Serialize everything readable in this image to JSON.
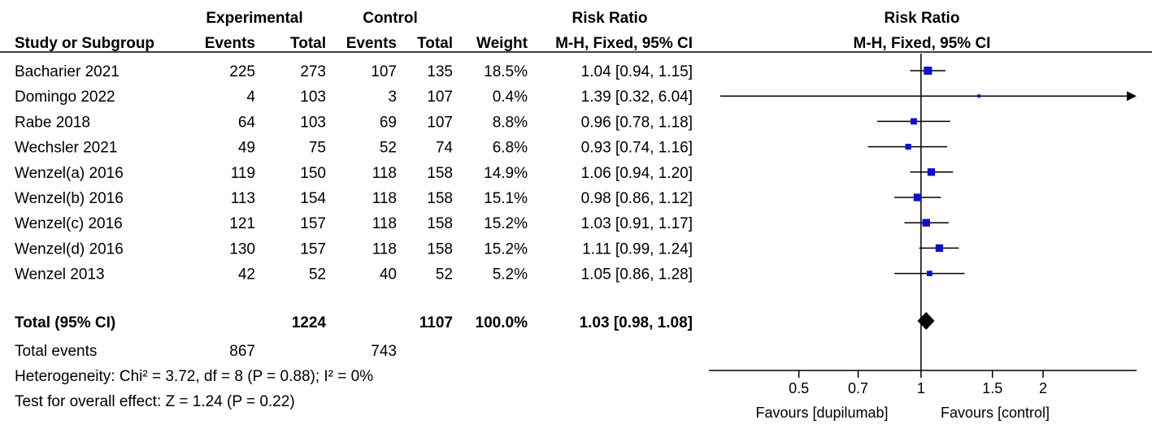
{
  "header": {
    "group_experimental": "Experimental",
    "group_control": "Control",
    "risk_ratio": "Risk Ratio",
    "col_study": "Study or Subgroup",
    "col_events": "Events",
    "col_total": "Total",
    "col_weight": "Weight",
    "col_method": "M-H, Fixed, 95% CI",
    "plot_title": "Risk Ratio",
    "plot_method": "M-H, Fixed, 95% CI"
  },
  "rows": [
    {
      "study": "Bacharier 2021",
      "exp_events": "225",
      "exp_total": "273",
      "ctl_events": "107",
      "ctl_total": "135",
      "weight": "18.5%",
      "ci": "1.04 [0.94, 1.15]"
    },
    {
      "study": "Domingo 2022",
      "exp_events": "4",
      "exp_total": "103",
      "ctl_events": "3",
      "ctl_total": "107",
      "weight": "0.4%",
      "ci": "1.39 [0.32, 6.04]"
    },
    {
      "study": "Rabe 2018",
      "exp_events": "64",
      "exp_total": "103",
      "ctl_events": "69",
      "ctl_total": "107",
      "weight": "8.8%",
      "ci": "0.96 [0.78, 1.18]"
    },
    {
      "study": "Wechsler 2021",
      "exp_events": "49",
      "exp_total": "75",
      "ctl_events": "52",
      "ctl_total": "74",
      "weight": "6.8%",
      "ci": "0.93 [0.74, 1.16]"
    },
    {
      "study": "Wenzel(a) 2016",
      "exp_events": "119",
      "exp_total": "150",
      "ctl_events": "118",
      "ctl_total": "158",
      "weight": "14.9%",
      "ci": "1.06 [0.94, 1.20]"
    },
    {
      "study": "Wenzel(b) 2016",
      "exp_events": "113",
      "exp_total": "154",
      "ctl_events": "118",
      "ctl_total": "158",
      "weight": "15.1%",
      "ci": "0.98 [0.86, 1.12]"
    },
    {
      "study": "Wenzel(c) 2016",
      "exp_events": "121",
      "exp_total": "157",
      "ctl_events": "118",
      "ctl_total": "158",
      "weight": "15.2%",
      "ci": "1.03 [0.91, 1.17]"
    },
    {
      "study": "Wenzel(d) 2016",
      "exp_events": "130",
      "exp_total": "157",
      "ctl_events": "118",
      "ctl_total": "158",
      "weight": "15.2%",
      "ci": "1.11 [0.99, 1.24]"
    },
    {
      "study": "Wenzel 2013",
      "exp_events": "42",
      "exp_total": "52",
      "ctl_events": "40",
      "ctl_total": "52",
      "weight": "5.2%",
      "ci": "1.05 [0.86, 1.28]"
    }
  ],
  "total": {
    "label": "Total (95% CI)",
    "exp_total": "1224",
    "ctl_total": "1107",
    "weight": "100.0%",
    "ci": "1.03 [0.98, 1.08]"
  },
  "total_events": {
    "label": "Total events",
    "exp": "867",
    "ctl": "743"
  },
  "heterogeneity": "Heterogeneity: Chi² = 3.72, df = 8 (P = 0.88); I² = 0%",
  "overall_effect": "Test for overall effect: Z = 1.24 (P = 0.22)",
  "axis": {
    "favours_left": "Favours [dupilumab]",
    "favours_right": "Favours [control]"
  },
  "colors": {
    "marker": "#1010c8",
    "line": "#000000"
  },
  "chart_data": {
    "type": "forest",
    "scale": "log",
    "xlim": [
      0.3,
      3.4
    ],
    "reference": 1,
    "ticks": [
      0.5,
      0.7,
      1,
      1.5,
      2
    ],
    "tick_labels": [
      "0.5",
      "0.7",
      "1",
      "1.5",
      "2"
    ],
    "studies": [
      {
        "name": "Bacharier 2021",
        "rr": 1.04,
        "lo": 0.94,
        "hi": 1.15,
        "weight": 18.5
      },
      {
        "name": "Domingo 2022",
        "rr": 1.39,
        "lo": 0.32,
        "hi": 6.04,
        "weight": 0.4
      },
      {
        "name": "Rabe 2018",
        "rr": 0.96,
        "lo": 0.78,
        "hi": 1.18,
        "weight": 8.8
      },
      {
        "name": "Wechsler 2021",
        "rr": 0.93,
        "lo": 0.74,
        "hi": 1.16,
        "weight": 6.8
      },
      {
        "name": "Wenzel(a) 2016",
        "rr": 1.06,
        "lo": 0.94,
        "hi": 1.2,
        "weight": 14.9
      },
      {
        "name": "Wenzel(b) 2016",
        "rr": 0.98,
        "lo": 0.86,
        "hi": 1.12,
        "weight": 15.1
      },
      {
        "name": "Wenzel(c) 2016",
        "rr": 1.03,
        "lo": 0.91,
        "hi": 1.17,
        "weight": 15.2
      },
      {
        "name": "Wenzel(d) 2016",
        "rr": 1.11,
        "lo": 0.99,
        "hi": 1.24,
        "weight": 15.2
      },
      {
        "name": "Wenzel 2013",
        "rr": 1.05,
        "lo": 0.86,
        "hi": 1.28,
        "weight": 5.2
      }
    ],
    "pooled": {
      "rr": 1.03,
      "lo": 0.98,
      "hi": 1.08
    }
  }
}
